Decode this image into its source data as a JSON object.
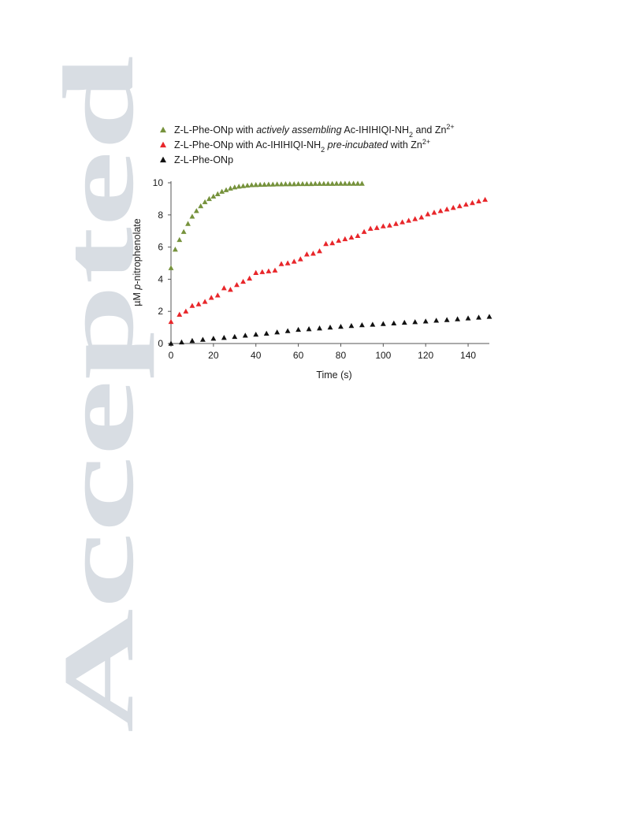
{
  "watermark": {
    "text": "Accepted",
    "color": "#d8dde3"
  },
  "chart_data": {
    "type": "scatter",
    "title": "",
    "xlabel": "Time (s)",
    "ylabel_prefix": "µM ",
    "ylabel_italic": "p",
    "ylabel_suffix": "-nitrophenolate",
    "xlim": [
      0,
      150
    ],
    "ylim": [
      0,
      10
    ],
    "xticks": [
      0,
      20,
      40,
      60,
      80,
      100,
      120,
      140
    ],
    "yticks": [
      0,
      2,
      4,
      6,
      8,
      10
    ],
    "grid": false,
    "legend_position": "top-left",
    "series": [
      {
        "legend": [
          {
            "t": "Z-L-Phe-ONp with "
          },
          {
            "t": "actively assembling",
            "i": true
          },
          {
            "t": " Ac-IHIHIQI-NH"
          },
          {
            "t": "2",
            "sub": true
          },
          {
            "t": " and Zn"
          },
          {
            "t": "2+",
            "sup": true
          }
        ],
        "color": "#76923c",
        "marker": "triangle",
        "x": [
          0,
          2,
          4,
          6,
          8,
          10,
          12,
          14,
          16,
          18,
          20,
          22,
          24,
          26,
          28,
          30,
          32,
          34,
          36,
          38,
          40,
          42,
          44,
          46,
          48,
          50,
          52,
          54,
          56,
          58,
          60,
          62,
          64,
          66,
          68,
          70,
          72,
          74,
          76,
          78,
          80,
          82,
          84,
          86,
          88,
          90
        ],
        "y": [
          4.7,
          5.85,
          6.45,
          6.95,
          7.45,
          7.9,
          8.25,
          8.55,
          8.8,
          9.0,
          9.15,
          9.3,
          9.45,
          9.55,
          9.65,
          9.72,
          9.77,
          9.8,
          9.83,
          9.86,
          9.87,
          9.88,
          9.89,
          9.9,
          9.9,
          9.91,
          9.91,
          9.92,
          9.92,
          9.92,
          9.93,
          9.93,
          9.93,
          9.93,
          9.94,
          9.94,
          9.94,
          9.94,
          9.94,
          9.95,
          9.95,
          9.95,
          9.95,
          9.95,
          9.95,
          9.95
        ]
      },
      {
        "legend": [
          {
            "t": "Z-L-Phe-ONp with Ac-IHIHIQI-NH"
          },
          {
            "t": "2",
            "sub": true
          },
          {
            "t": " "
          },
          {
            "t": "pre-incubated",
            "i": true
          },
          {
            "t": " with Zn"
          },
          {
            "t": "2+",
            "sup": true
          }
        ],
        "color": "#e8262a",
        "marker": "triangle",
        "x": [
          0,
          4,
          7,
          10,
          13,
          16,
          19,
          22,
          25,
          28,
          31,
          34,
          37,
          40,
          43,
          46,
          49,
          52,
          55,
          58,
          61,
          64,
          67,
          70,
          73,
          76,
          79,
          82,
          85,
          88,
          91,
          94,
          97,
          100,
          103,
          106,
          109,
          112,
          115,
          118,
          121,
          124,
          127,
          130,
          133,
          136,
          139,
          142,
          145,
          148
        ],
        "y": [
          1.35,
          1.8,
          2.0,
          2.35,
          2.45,
          2.6,
          2.85,
          3.0,
          3.45,
          3.35,
          3.65,
          3.85,
          4.05,
          4.4,
          4.45,
          4.5,
          4.55,
          4.95,
          5.0,
          5.1,
          5.25,
          5.55,
          5.6,
          5.75,
          6.2,
          6.25,
          6.4,
          6.5,
          6.6,
          6.7,
          6.95,
          7.15,
          7.2,
          7.3,
          7.35,
          7.45,
          7.55,
          7.65,
          7.75,
          7.85,
          8.05,
          8.15,
          8.25,
          8.35,
          8.45,
          8.55,
          8.65,
          8.75,
          8.85,
          8.95
        ]
      },
      {
        "legend": [
          {
            "t": "Z-L-Phe-ONp"
          }
        ],
        "color": "#111111",
        "marker": "triangle",
        "x": [
          0,
          5,
          10,
          15,
          20,
          25,
          30,
          35,
          40,
          45,
          50,
          55,
          60,
          65,
          70,
          75,
          80,
          85,
          90,
          95,
          100,
          105,
          110,
          115,
          120,
          125,
          130,
          135,
          140,
          145,
          150
        ],
        "y": [
          0.0,
          0.08,
          0.17,
          0.24,
          0.31,
          0.36,
          0.42,
          0.5,
          0.56,
          0.62,
          0.7,
          0.78,
          0.86,
          0.9,
          0.95,
          1.0,
          1.05,
          1.1,
          1.15,
          1.18,
          1.22,
          1.26,
          1.3,
          1.34,
          1.38,
          1.43,
          1.47,
          1.52,
          1.57,
          1.62,
          1.67
        ]
      }
    ]
  }
}
